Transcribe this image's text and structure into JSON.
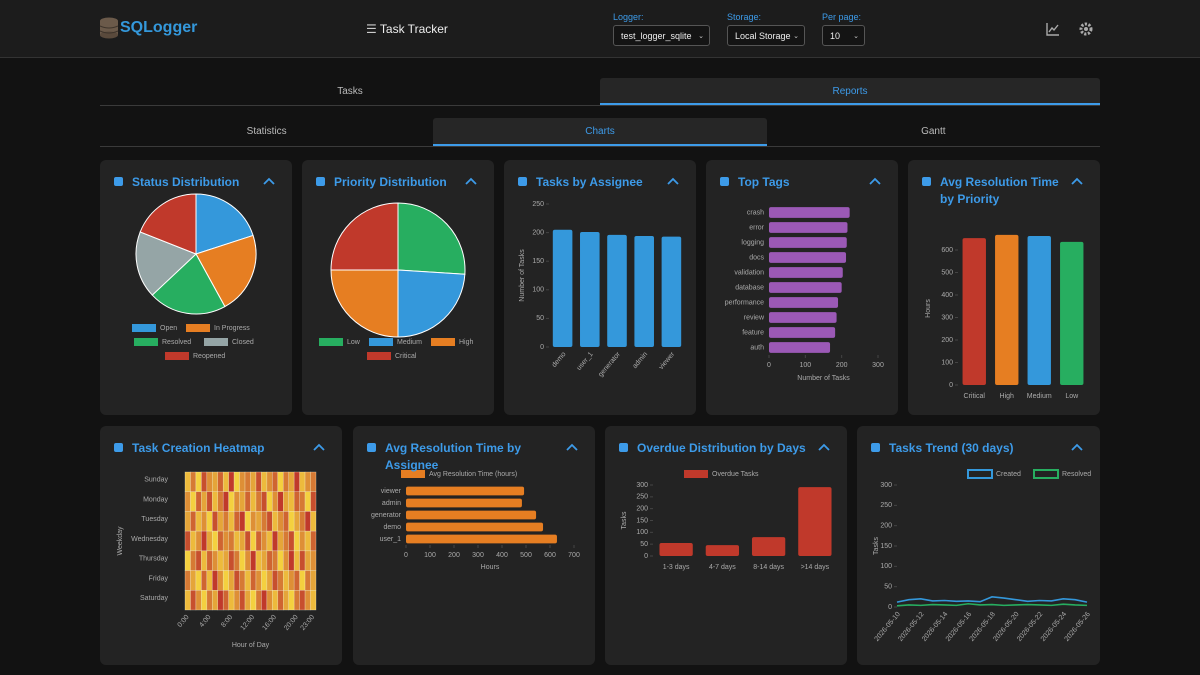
{
  "header": {
    "logo": "SQLogger",
    "title": "Task Tracker",
    "controls": [
      {
        "label": "Logger:",
        "value": "test_logger_sqlite"
      },
      {
        "label": "Storage:",
        "value": "Local Storage"
      },
      {
        "label": "Per page:",
        "value": "10"
      }
    ]
  },
  "tabs": {
    "items": [
      "Tasks",
      "Reports"
    ],
    "active": 1
  },
  "subtabs": {
    "items": [
      "Statistics",
      "Charts",
      "Gantt"
    ],
    "active": 1
  },
  "chart_data": [
    {
      "type": "pie",
      "title": "Status Distribution",
      "categories": [
        "Open",
        "In Progress",
        "Resolved",
        "Closed",
        "Reopened"
      ],
      "values": [
        20,
        22,
        21,
        18,
        19
      ],
      "colors": [
        "#3498db",
        "#e67e22",
        "#27ae60",
        "#95a5a6",
        "#c0392b"
      ]
    },
    {
      "type": "pie",
      "title": "Priority Distribution",
      "categories": [
        "Low",
        "Medium",
        "High",
        "Critical"
      ],
      "values": [
        26,
        24,
        25,
        25
      ],
      "colors": [
        "#27ae60",
        "#3498db",
        "#e67e22",
        "#c0392b"
      ]
    },
    {
      "type": "bar",
      "title": "Tasks by Assignee",
      "categories": [
        "demo",
        "user_1",
        "generator",
        "admin",
        "viewer"
      ],
      "values": [
        205,
        201,
        196,
        194,
        193
      ],
      "color": "#3498db",
      "ylabel": "Number of Tasks",
      "ylim": [
        0,
        250
      ],
      "yticks": [
        0,
        50,
        100,
        150,
        200,
        250
      ]
    },
    {
      "type": "bar",
      "orientation": "horizontal",
      "title": "Top Tags",
      "categories": [
        "crash",
        "error",
        "logging",
        "docs",
        "validation",
        "database",
        "performance",
        "review",
        "feature",
        "auth"
      ],
      "values": [
        222,
        216,
        214,
        212,
        203,
        200,
        190,
        186,
        182,
        168
      ],
      "color": "#9b59b6",
      "xlabel": "Number of Tasks",
      "xlim": [
        0,
        300
      ],
      "xticks": [
        0,
        100,
        200,
        300
      ]
    },
    {
      "type": "bar",
      "title": "Avg Resolution Time by Priority",
      "categories": [
        "Critical",
        "High",
        "Medium",
        "Low"
      ],
      "values": [
        653,
        667,
        662,
        636
      ],
      "colors": [
        "#c0392b",
        "#e67e22",
        "#3498db",
        "#27ae60"
      ],
      "ylabel": "Hours",
      "ylim": [
        0,
        680
      ],
      "yticks": [
        0,
        100,
        200,
        300,
        400,
        500,
        600
      ]
    },
    {
      "type": "heatmap",
      "title": "Task Creation Heatmap",
      "categories": [
        "0:00",
        null,
        null,
        null,
        "4:00",
        null,
        null,
        null,
        "8:00",
        null,
        null,
        null,
        "12:00",
        null,
        null,
        null,
        "16:00",
        null,
        null,
        null,
        "20:00",
        null,
        null,
        "23:00"
      ],
      "rows": [
        "Sunday",
        "Monday",
        "Tuesday",
        "Wednesday",
        "Thursday",
        "Friday",
        "Saturday"
      ],
      "xlabel": "Hour of Day",
      "ylabel": "Weekday",
      "values": [
        [
          3,
          6,
          2,
          8,
          5,
          4,
          7,
          3,
          9,
          2,
          5,
          6,
          4,
          8,
          3,
          5,
          7,
          2,
          6,
          4,
          9,
          3,
          5,
          6
        ],
        [
          5,
          2,
          7,
          4,
          8,
          3,
          6,
          9,
          2,
          5,
          4,
          7,
          3,
          6,
          8,
          2,
          5,
          9,
          4,
          3,
          7,
          6,
          2,
          8
        ],
        [
          4,
          7,
          3,
          5,
          2,
          8,
          4,
          6,
          3,
          7,
          9,
          2,
          5,
          4,
          6,
          8,
          3,
          5,
          7,
          2,
          4,
          6,
          9,
          3
        ],
        [
          8,
          3,
          5,
          9,
          4,
          2,
          7,
          5,
          6,
          3,
          4,
          8,
          2,
          7,
          5,
          3,
          9,
          4,
          6,
          8,
          2,
          5,
          3,
          7
        ],
        [
          2,
          6,
          8,
          3,
          7,
          5,
          3,
          4,
          8,
          6,
          2,
          5,
          9,
          3,
          4,
          7,
          6,
          2,
          5,
          9,
          3,
          8,
          4,
          5
        ],
        [
          6,
          4,
          2,
          7,
          3,
          9,
          5,
          2,
          4,
          8,
          6,
          3,
          7,
          5,
          2,
          4,
          8,
          6,
          3,
          5,
          7,
          2,
          6,
          4
        ],
        [
          3,
          8,
          5,
          2,
          6,
          4,
          9,
          7,
          3,
          5,
          8,
          4,
          2,
          6,
          9,
          5,
          3,
          7,
          4,
          2,
          6,
          8,
          5,
          3
        ]
      ]
    },
    {
      "type": "bar",
      "orientation": "horizontal",
      "title": "Avg Resolution Time by Assignee",
      "categories": [
        "viewer",
        "admin",
        "generator",
        "demo",
        "user_1"
      ],
      "series": [
        {
          "name": "Avg Resolution Time (hours)",
          "color": "#e67e22",
          "values": [
            492,
            483,
            542,
            571,
            629
          ]
        }
      ],
      "xlabel": "Hours",
      "xlim": [
        0,
        700
      ],
      "xticks": [
        0,
        100,
        200,
        300,
        400,
        500,
        600,
        700
      ]
    },
    {
      "type": "bar",
      "title": "Overdue Distribution by Days",
      "categories": [
        "1-3 days",
        "4-7 days",
        "8-14 days",
        ">14 days"
      ],
      "series": [
        {
          "name": "Overdue Tasks",
          "color": "#c0392b",
          "values": [
            55,
            46,
            80,
            291
          ]
        }
      ],
      "ylabel": "Tasks",
      "ylim": [
        0,
        300
      ],
      "yticks": [
        0,
        50,
        100,
        150,
        200,
        250,
        300
      ]
    },
    {
      "type": "line",
      "title": "Tasks Trend (30 days)",
      "categories": [
        "2026-05-10",
        null,
        "2026-05-12",
        null,
        "2026-05-14",
        null,
        "2026-05-16",
        null,
        "2026-05-18",
        null,
        "2026-05-20",
        null,
        "2026-05-22",
        null,
        "2026-05-24",
        null,
        "2026-05-26"
      ],
      "series": [
        {
          "name": "Created",
          "color": "#3498db",
          "values": [
            12,
            18,
            20,
            15,
            16,
            14,
            15,
            13,
            25,
            22,
            18,
            14,
            16,
            15,
            20,
            18,
            12
          ]
        },
        {
          "name": "Resolved",
          "color": "#27ae60",
          "values": [
            3,
            5,
            4,
            6,
            5,
            4,
            8,
            5,
            6,
            4,
            5,
            6,
            5,
            4,
            7,
            5,
            4
          ]
        }
      ],
      "ylabel": "Tasks",
      "ylim": [
        0,
        300
      ],
      "yticks": [
        0,
        50,
        100,
        150,
        200,
        250,
        300
      ]
    }
  ]
}
